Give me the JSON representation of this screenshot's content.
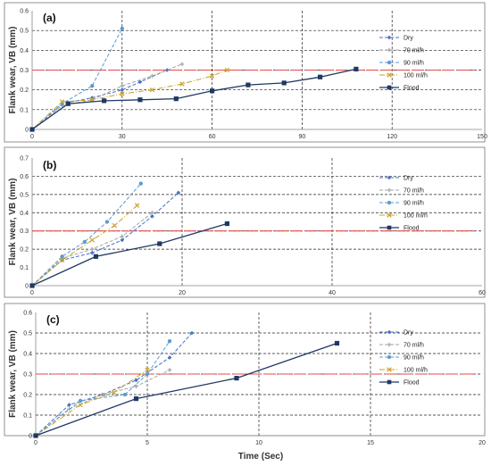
{
  "figure": {
    "ylabel": "Flank wear, VB (mm)",
    "xlabel": "Time (Sec)"
  },
  "colors": {
    "dry": "#4472c4",
    "ml70": "#a5a5a5",
    "ml90": "#5b9bd5",
    "ml100": "#c9a227",
    "flood": "#1f3864",
    "limit": "#e84a4a",
    "grid": "#222222",
    "border": "#777777"
  },
  "chart_data": [
    {
      "type": "line",
      "panel_label": "(a)",
      "xlim": [
        0,
        150
      ],
      "ylim": [
        0,
        0.6
      ],
      "xticks": [
        0,
        30,
        60,
        90,
        120,
        150
      ],
      "yticks": [
        0,
        0.1,
        0.2,
        0.3,
        0.4,
        0.5,
        0.6
      ],
      "vgrid": [
        30,
        60,
        90,
        120
      ],
      "hgrid": [
        0.1,
        0.2,
        0.3,
        0.4,
        0.5
      ],
      "threshold": 0.3,
      "legend_position": "right",
      "series": [
        {
          "name": "Dry",
          "key": "dry",
          "x": [
            0,
            10,
            20,
            30,
            36,
            45
          ],
          "y": [
            0,
            0.13,
            0.16,
            0.2,
            0.24,
            0.3
          ]
        },
        {
          "name": "70 ml/h",
          "key": "ml70",
          "x": [
            0,
            10,
            20,
            30,
            40,
            50
          ],
          "y": [
            0,
            0.12,
            0.15,
            0.22,
            0.27,
            0.33
          ]
        },
        {
          "name": "90 ml/h",
          "key": "ml90",
          "x": [
            0,
            10,
            20,
            30
          ],
          "y": [
            0,
            0.13,
            0.22,
            0.51
          ]
        },
        {
          "name": "100 ml/h",
          "key": "ml100",
          "x": [
            0,
            10,
            20,
            30,
            40,
            50,
            60,
            65
          ],
          "y": [
            0,
            0.14,
            0.15,
            0.18,
            0.2,
            0.23,
            0.27,
            0.3
          ]
        },
        {
          "name": "Flood",
          "key": "flood",
          "x": [
            0,
            12,
            24,
            36,
            48,
            60,
            72,
            84,
            96,
            108
          ],
          "y": [
            0,
            0.13,
            0.145,
            0.15,
            0.155,
            0.195,
            0.225,
            0.235,
            0.265,
            0.305
          ]
        }
      ]
    },
    {
      "type": "line",
      "panel_label": "(b)",
      "xlim": [
        0,
        60
      ],
      "ylim": [
        0,
        0.7
      ],
      "xticks": [
        0,
        20,
        40,
        60
      ],
      "yticks": [
        0,
        0.1,
        0.2,
        0.3,
        0.4,
        0.5,
        0.6,
        0.7
      ],
      "vgrid": [
        20,
        40
      ],
      "hgrid": [
        0.2,
        0.3,
        0.4,
        0.5,
        0.6
      ],
      "threshold": 0.3,
      "legend_position": "right",
      "series": [
        {
          "name": "Dry",
          "key": "dry",
          "x": [
            0,
            4,
            8,
            12,
            16,
            19.5
          ],
          "y": [
            0,
            0.14,
            0.18,
            0.25,
            0.38,
            0.51
          ]
        },
        {
          "name": "70 ml/h",
          "key": "ml70",
          "x": [
            0,
            4,
            8,
            12,
            16
          ],
          "y": [
            0,
            0.15,
            0.2,
            0.27,
            0.4
          ]
        },
        {
          "name": "90 ml/h",
          "key": "ml90",
          "x": [
            0,
            4,
            7,
            10,
            14.5
          ],
          "y": [
            0,
            0.16,
            0.24,
            0.35,
            0.56
          ]
        },
        {
          "name": "100 ml/h",
          "key": "ml100",
          "x": [
            0,
            4,
            8,
            11,
            14
          ],
          "y": [
            0,
            0.14,
            0.25,
            0.33,
            0.44
          ]
        },
        {
          "name": "Flood",
          "key": "flood",
          "x": [
            0,
            8.5,
            17,
            26
          ],
          "y": [
            0,
            0.16,
            0.23,
            0.34
          ]
        }
      ]
    },
    {
      "type": "line",
      "panel_label": "(c)",
      "xlim": [
        0,
        20
      ],
      "ylim": [
        0,
        0.6
      ],
      "xticks": [
        0,
        5,
        10,
        15,
        20
      ],
      "yticks": [
        0,
        0.1,
        0.2,
        0.3,
        0.4,
        0.5,
        0.6
      ],
      "vgrid": [
        5,
        10,
        15
      ],
      "hgrid": [
        0.1,
        0.2,
        0.3,
        0.4,
        0.5
      ],
      "threshold": 0.3,
      "legend_position": "right",
      "series": [
        {
          "name": "Dry",
          "key": "dry",
          "x": [
            0,
            1.5,
            3,
            4.5,
            6,
            7
          ],
          "y": [
            0,
            0.15,
            0.2,
            0.27,
            0.38,
            0.5
          ]
        },
        {
          "name": "70 ml/h",
          "key": "ml70",
          "x": [
            0,
            1.5,
            3,
            4.5,
            6
          ],
          "y": [
            0,
            0.13,
            0.2,
            0.24,
            0.32
          ]
        },
        {
          "name": "90 ml/h",
          "key": "ml90",
          "x": [
            0,
            2,
            4,
            5,
            6
          ],
          "y": [
            0,
            0.17,
            0.2,
            0.3,
            0.46
          ]
        },
        {
          "name": "100 ml/h",
          "key": "ml100",
          "x": [
            0,
            2,
            3.5,
            5
          ],
          "y": [
            0,
            0.15,
            0.21,
            0.32
          ]
        },
        {
          "name": "Flood",
          "key": "flood",
          "x": [
            0,
            4.5,
            9,
            13.5
          ],
          "y": [
            0,
            0.18,
            0.28,
            0.45
          ]
        }
      ]
    }
  ]
}
